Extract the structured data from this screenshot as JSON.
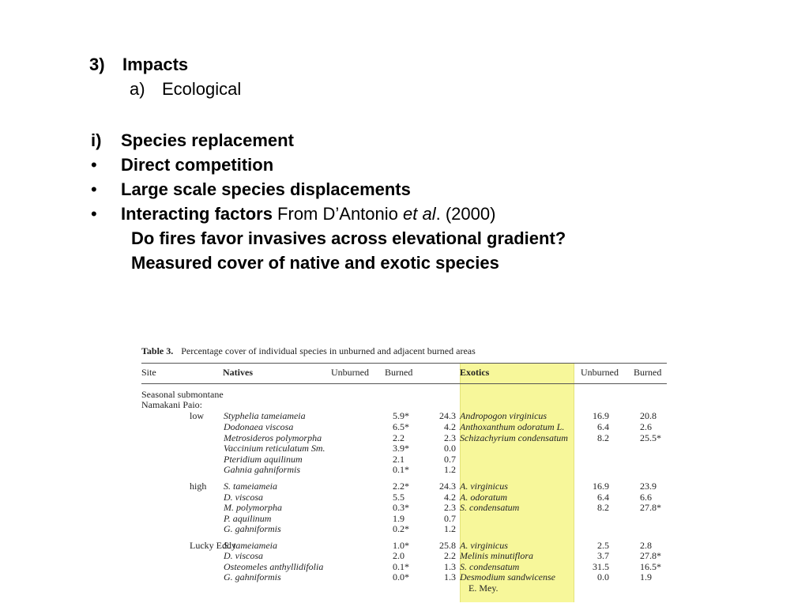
{
  "slide": {
    "heading": {
      "num": "3)",
      "text": "Impacts"
    },
    "subheading": {
      "num": "a)",
      "text": "Ecological"
    },
    "point_i": {
      "num": "i)",
      "text": "Species replacement"
    },
    "bullets": [
      {
        "symbol": "•",
        "text": "Direct competition"
      },
      {
        "symbol": "•",
        "text": "Large scale species displacements"
      }
    ],
    "bullet3": {
      "symbol": "•",
      "bold": "Interacting factors",
      "from": " From D’Antonio ",
      "etal": "et al",
      "year": ". (2000)"
    },
    "sub_lines": [
      "Do fires favor invasives across elevational gradient?",
      "Measured cover of native and exotic species"
    ]
  },
  "table": {
    "caption_label": "Table 3.",
    "caption_text": "Percentage cover of individual species in unburned and adjacent burned areas",
    "headers": {
      "site": "Site",
      "natives": "Natives",
      "unburned": "Unburned",
      "burned": "Burned",
      "exotics": "Exotics",
      "unburned2": "Unburned",
      "burned2": "Burned"
    },
    "group_label_1": "Seasonal submontane",
    "group_label_2": "Namakani Paio:",
    "rows": [
      {
        "site": "low",
        "native": "Styphelia tameiameia",
        "nu": "24.3",
        "nb": "5.9*",
        "exotic": "Andropogon virginicus",
        "eu": "16.9",
        "eb": "20.8"
      },
      {
        "site": "",
        "native": "Dodonaea viscosa",
        "nu": "4.2",
        "nb": "6.5*",
        "exotic": "Anthoxanthum odoratum L.",
        "eu": "6.4",
        "eb": "2.6"
      },
      {
        "site": "",
        "native": "Metrosideros polymorpha",
        "nu": "2.3",
        "nb": "2.2",
        "exotic": "Schizachyrium condensatum",
        "eu": "8.2",
        "eb": "25.5*"
      },
      {
        "site": "",
        "native": "Vaccinium reticulatum Sm.",
        "nu": "0.0",
        "nb": "3.9*",
        "exotic": "",
        "eu": "",
        "eb": ""
      },
      {
        "site": "",
        "native": "Pteridium aquilinum",
        "nu": "0.7",
        "nb": "2.1",
        "exotic": "",
        "eu": "",
        "eb": ""
      },
      {
        "site": "",
        "native": "Gahnia gahniformis",
        "nu": "1.2",
        "nb": "0.1*",
        "exotic": "",
        "eu": "",
        "eb": ""
      },
      {
        "site": "high",
        "native": "S. tameiameia",
        "nu": "24.3",
        "nb": "2.2*",
        "exotic": "A. virginicus",
        "eu": "16.9",
        "eb": "23.9"
      },
      {
        "site": "",
        "native": "D. viscosa",
        "nu": "4.2",
        "nb": "5.5",
        "exotic": "A. odoratum",
        "eu": "6.4",
        "eb": "6.6"
      },
      {
        "site": "",
        "native": "M. polymorpha",
        "nu": "2.3",
        "nb": "0.3*",
        "exotic": "S. condensatum",
        "eu": "8.2",
        "eb": "27.8*"
      },
      {
        "site": "",
        "native": "P. aquilinum",
        "nu": "0.7",
        "nb": "1.9",
        "exotic": "",
        "eu": "",
        "eb": ""
      },
      {
        "site": "",
        "native": "G. gahniformis",
        "nu": "1.2",
        "nb": "0.2*",
        "exotic": "",
        "eu": "",
        "eb": ""
      },
      {
        "site": "Lucky Eddy",
        "native": "S. tameiameia",
        "nu": "25.8",
        "nb": "1.0*",
        "exotic": "A. virginicus",
        "eu": "2.5",
        "eb": "2.8"
      },
      {
        "site": "",
        "native": "D. viscosa",
        "nu": "2.2",
        "nb": "2.0",
        "exotic": "Melinis minutiflora",
        "eu": "3.7",
        "eb": "27.8*"
      },
      {
        "site": "",
        "native": "Osteomeles anthyllidifolia",
        "nu": "1.3",
        "nb": "0.1*",
        "exotic": "S. condensatum",
        "eu": "31.5",
        "eb": "16.5*"
      },
      {
        "site": "",
        "native": "G. gahniformis",
        "nu": "1.3",
        "nb": "0.0*",
        "exotic": "Desmodium sandwicense",
        "eu": "0.0",
        "eb": "1.9"
      }
    ],
    "last_exotic_cont": "E. Mey."
  },
  "colors": {
    "highlight": "#f7f79a",
    "text": "#000000"
  }
}
